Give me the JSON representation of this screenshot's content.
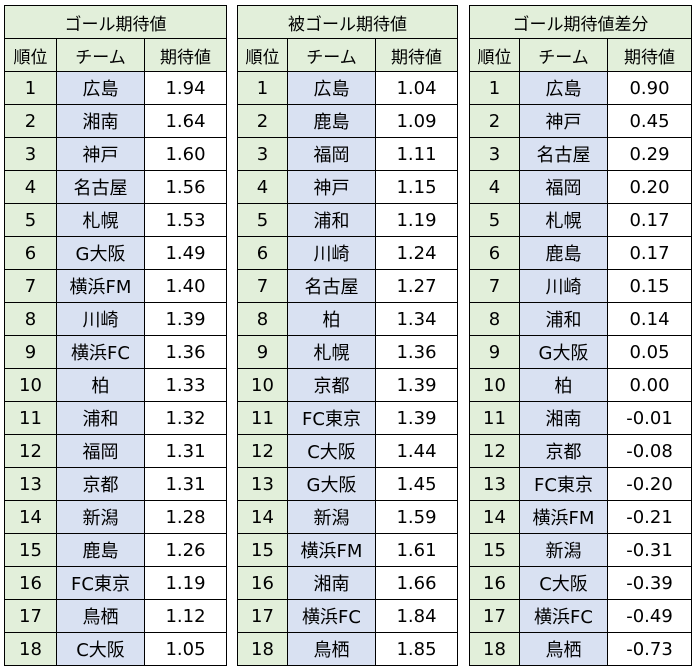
{
  "tables": [
    {
      "title": "ゴール期待値",
      "headers": [
        "順位",
        "チーム",
        "期待値"
      ],
      "rows": [
        {
          "rank": "1",
          "team": "広島",
          "value": "1.94"
        },
        {
          "rank": "2",
          "team": "湘南",
          "value": "1.64"
        },
        {
          "rank": "3",
          "team": "神戸",
          "value": "1.60"
        },
        {
          "rank": "4",
          "team": "名古屋",
          "value": "1.56"
        },
        {
          "rank": "5",
          "team": "札幌",
          "value": "1.53"
        },
        {
          "rank": "6",
          "team": "G大阪",
          "value": "1.49"
        },
        {
          "rank": "7",
          "team": "横浜FM",
          "value": "1.40"
        },
        {
          "rank": "8",
          "team": "川崎",
          "value": "1.39"
        },
        {
          "rank": "9",
          "team": "横浜FC",
          "value": "1.36"
        },
        {
          "rank": "10",
          "team": "柏",
          "value": "1.33"
        },
        {
          "rank": "11",
          "team": "浦和",
          "value": "1.32"
        },
        {
          "rank": "12",
          "team": "福岡",
          "value": "1.31"
        },
        {
          "rank": "13",
          "team": "京都",
          "value": "1.31"
        },
        {
          "rank": "14",
          "team": "新潟",
          "value": "1.28"
        },
        {
          "rank": "15",
          "team": "鹿島",
          "value": "1.26"
        },
        {
          "rank": "16",
          "team": "FC東京",
          "value": "1.19"
        },
        {
          "rank": "17",
          "team": "鳥栖",
          "value": "1.12"
        },
        {
          "rank": "18",
          "team": "C大阪",
          "value": "1.05"
        }
      ]
    },
    {
      "title": "被ゴール期待値",
      "headers": [
        "順位",
        "チーム",
        "期待値"
      ],
      "rows": [
        {
          "rank": "1",
          "team": "広島",
          "value": "1.04"
        },
        {
          "rank": "2",
          "team": "鹿島",
          "value": "1.09"
        },
        {
          "rank": "3",
          "team": "福岡",
          "value": "1.11"
        },
        {
          "rank": "4",
          "team": "神戸",
          "value": "1.15"
        },
        {
          "rank": "5",
          "team": "浦和",
          "value": "1.19"
        },
        {
          "rank": "6",
          "team": "川崎",
          "value": "1.24"
        },
        {
          "rank": "7",
          "team": "名古屋",
          "value": "1.27"
        },
        {
          "rank": "8",
          "team": "柏",
          "value": "1.34"
        },
        {
          "rank": "9",
          "team": "札幌",
          "value": "1.36"
        },
        {
          "rank": "10",
          "team": "京都",
          "value": "1.39"
        },
        {
          "rank": "11",
          "team": "FC東京",
          "value": "1.39"
        },
        {
          "rank": "12",
          "team": "C大阪",
          "value": "1.44"
        },
        {
          "rank": "13",
          "team": "G大阪",
          "value": "1.45"
        },
        {
          "rank": "14",
          "team": "新潟",
          "value": "1.59"
        },
        {
          "rank": "15",
          "team": "横浜FM",
          "value": "1.61"
        },
        {
          "rank": "16",
          "team": "湘南",
          "value": "1.66"
        },
        {
          "rank": "17",
          "team": "横浜FC",
          "value": "1.84"
        },
        {
          "rank": "18",
          "team": "鳥栖",
          "value": "1.85"
        }
      ]
    },
    {
      "title": "ゴール期待値差分",
      "headers": [
        "順位",
        "チーム",
        "期待値"
      ],
      "rows": [
        {
          "rank": "1",
          "team": "広島",
          "value": "0.90"
        },
        {
          "rank": "2",
          "team": "神戸",
          "value": "0.45"
        },
        {
          "rank": "3",
          "team": "名古屋",
          "value": "0.29"
        },
        {
          "rank": "4",
          "team": "福岡",
          "value": "0.20"
        },
        {
          "rank": "5",
          "team": "札幌",
          "value": "0.17"
        },
        {
          "rank": "6",
          "team": "鹿島",
          "value": "0.17"
        },
        {
          "rank": "7",
          "team": "川崎",
          "value": "0.15"
        },
        {
          "rank": "8",
          "team": "浦和",
          "value": "0.14"
        },
        {
          "rank": "9",
          "team": "G大阪",
          "value": "0.05"
        },
        {
          "rank": "10",
          "team": "柏",
          "value": "0.00"
        },
        {
          "rank": "11",
          "team": "湘南",
          "value": "-0.01"
        },
        {
          "rank": "12",
          "team": "京都",
          "value": "-0.08"
        },
        {
          "rank": "13",
          "team": "FC東京",
          "value": "-0.20"
        },
        {
          "rank": "14",
          "team": "横浜FM",
          "value": "-0.21"
        },
        {
          "rank": "15",
          "team": "新潟",
          "value": "-0.31"
        },
        {
          "rank": "16",
          "team": "C大阪",
          "value": "-0.39"
        },
        {
          "rank": "17",
          "team": "横浜FC",
          "value": "-0.49"
        },
        {
          "rank": "18",
          "team": "鳥栖",
          "value": "-0.73"
        }
      ]
    }
  ],
  "colors": {
    "header_bg": "#e2efda",
    "team_bg": "#d9e1f2",
    "value_bg": "#ffffff",
    "border": "#000000"
  }
}
